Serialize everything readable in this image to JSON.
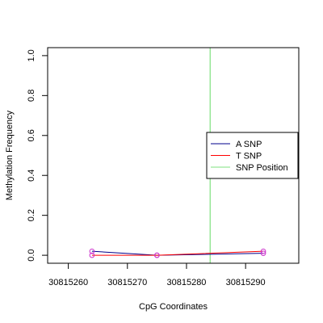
{
  "chart_data": {
    "type": "line",
    "title": "",
    "xlabel": "CpG Coordinates",
    "ylabel": "Methylation Frequency",
    "xlim": [
      30815256.5,
      30815299
    ],
    "ylim": [
      -0.04,
      1.04
    ],
    "x_ticks": [
      30815260,
      30815270,
      30815280,
      30815290
    ],
    "x_tick_labels": [
      "30815260",
      "30815270",
      "30815280",
      "30815290"
    ],
    "y_ticks": [
      0,
      0.2,
      0.4,
      0.6,
      0.8,
      1.0
    ],
    "y_tick_labels": [
      "0.0",
      "0.2",
      "0.4",
      "0.6",
      "0.8",
      "1.0"
    ],
    "grid": false,
    "series": [
      {
        "name": "A SNP",
        "color": "#00008b",
        "x": [
          30815264,
          30815275,
          30815293
        ],
        "y": [
          0.02,
          0.0,
          0.01
        ]
      },
      {
        "name": "T SNP",
        "color": "#ff0000",
        "x": [
          30815264,
          30815275,
          30815293
        ],
        "y": [
          0.0,
          0.0,
          0.02
        ]
      }
    ],
    "marker_color": "#cc33cc",
    "snp_position": {
      "name": "SNP Position",
      "x": 30815284,
      "color": "#7ee07e"
    },
    "legend": {
      "placement": "right",
      "entries": [
        {
          "label": "A SNP",
          "color": "#00008b"
        },
        {
          "label": "T SNP",
          "color": "#ff0000"
        },
        {
          "label": "SNP Position",
          "color": "#7ee07e"
        }
      ]
    }
  }
}
